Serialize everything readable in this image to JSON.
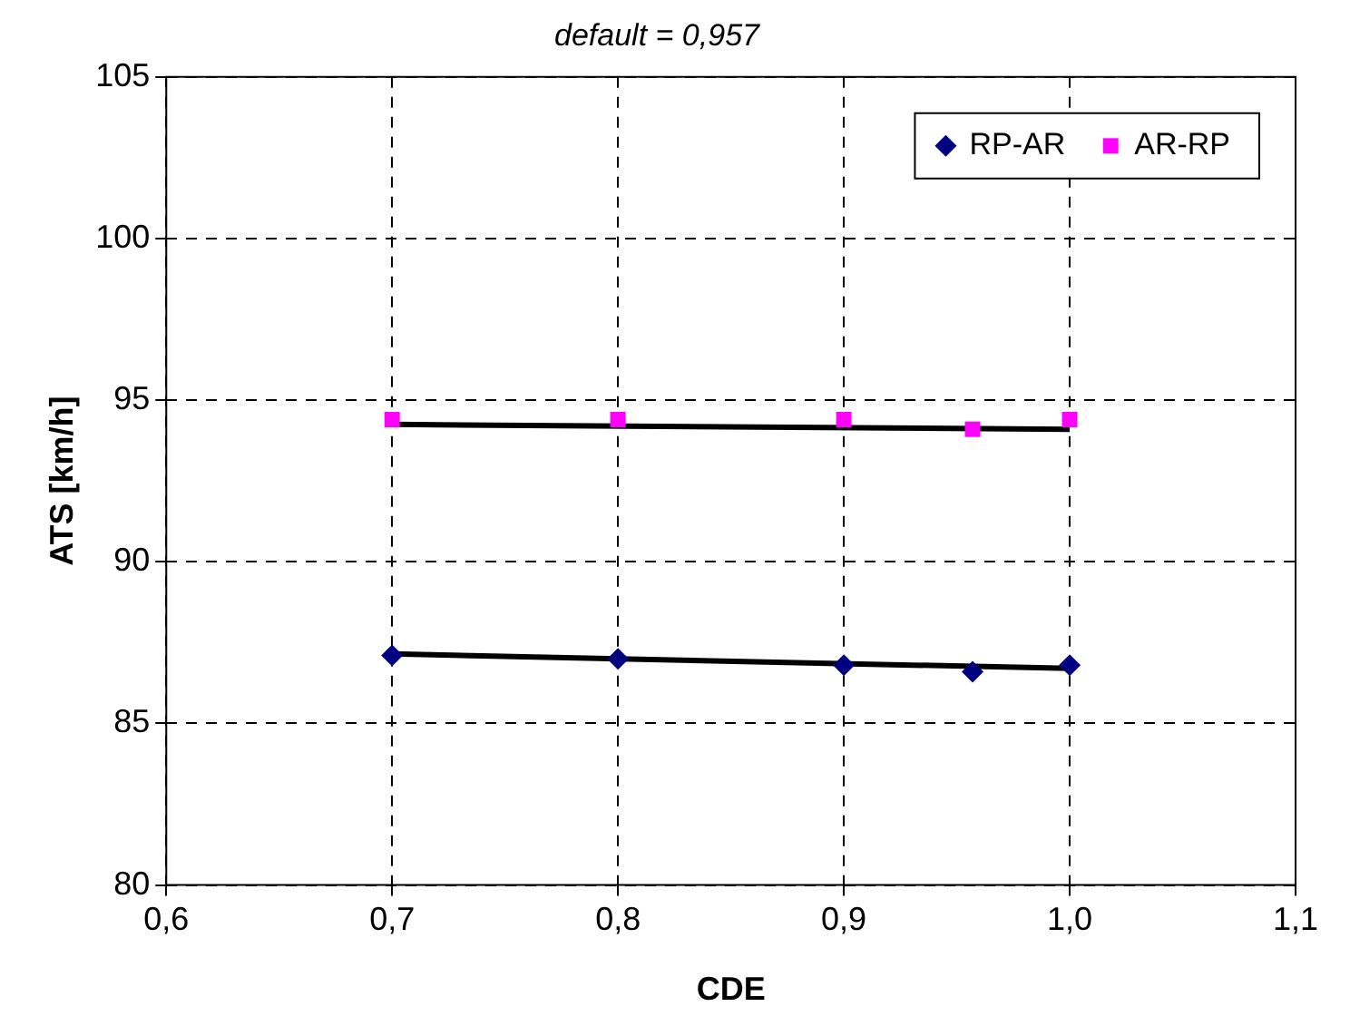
{
  "chart_data": {
    "type": "scatter",
    "title": "default = 0,957",
    "xlabel": "CDE",
    "ylabel": "ATS [km/h]",
    "x": [
      0.7,
      0.8,
      0.9,
      0.957,
      1.0
    ],
    "series": [
      {
        "name": "RP-AR",
        "color": "#000080",
        "marker": "diamond",
        "values": [
          87.1,
          87.0,
          86.8,
          86.6,
          86.8
        ]
      },
      {
        "name": "AR-RP",
        "color": "#ff00ff",
        "marker": "square",
        "values": [
          94.4,
          94.4,
          94.4,
          94.1,
          94.4
        ]
      },
      {
        "type": "line",
        "color": "#000000",
        "marker": "none",
        "values": [
          87.15,
          null,
          null,
          null,
          86.7
        ]
      },
      {
        "type": "line",
        "color": "#000000",
        "marker": "none",
        "values": [
          94.25,
          null,
          null,
          null,
          94.1
        ]
      }
    ],
    "xlim": [
      0.6,
      1.1
    ],
    "xticks": [
      {
        "value": 0.6,
        "label": "0,6"
      },
      {
        "value": 0.7,
        "label": "0,7"
      },
      {
        "value": 0.8,
        "label": "0,8"
      },
      {
        "value": 0.9,
        "label": "0,9"
      },
      {
        "value": 1.0,
        "label": "1,0"
      },
      {
        "value": 1.1,
        "label": "1,1"
      }
    ],
    "ylim": [
      80,
      105
    ],
    "yticks": [
      80,
      85,
      90,
      95,
      100,
      105
    ],
    "grid": true,
    "legend": "top right"
  }
}
